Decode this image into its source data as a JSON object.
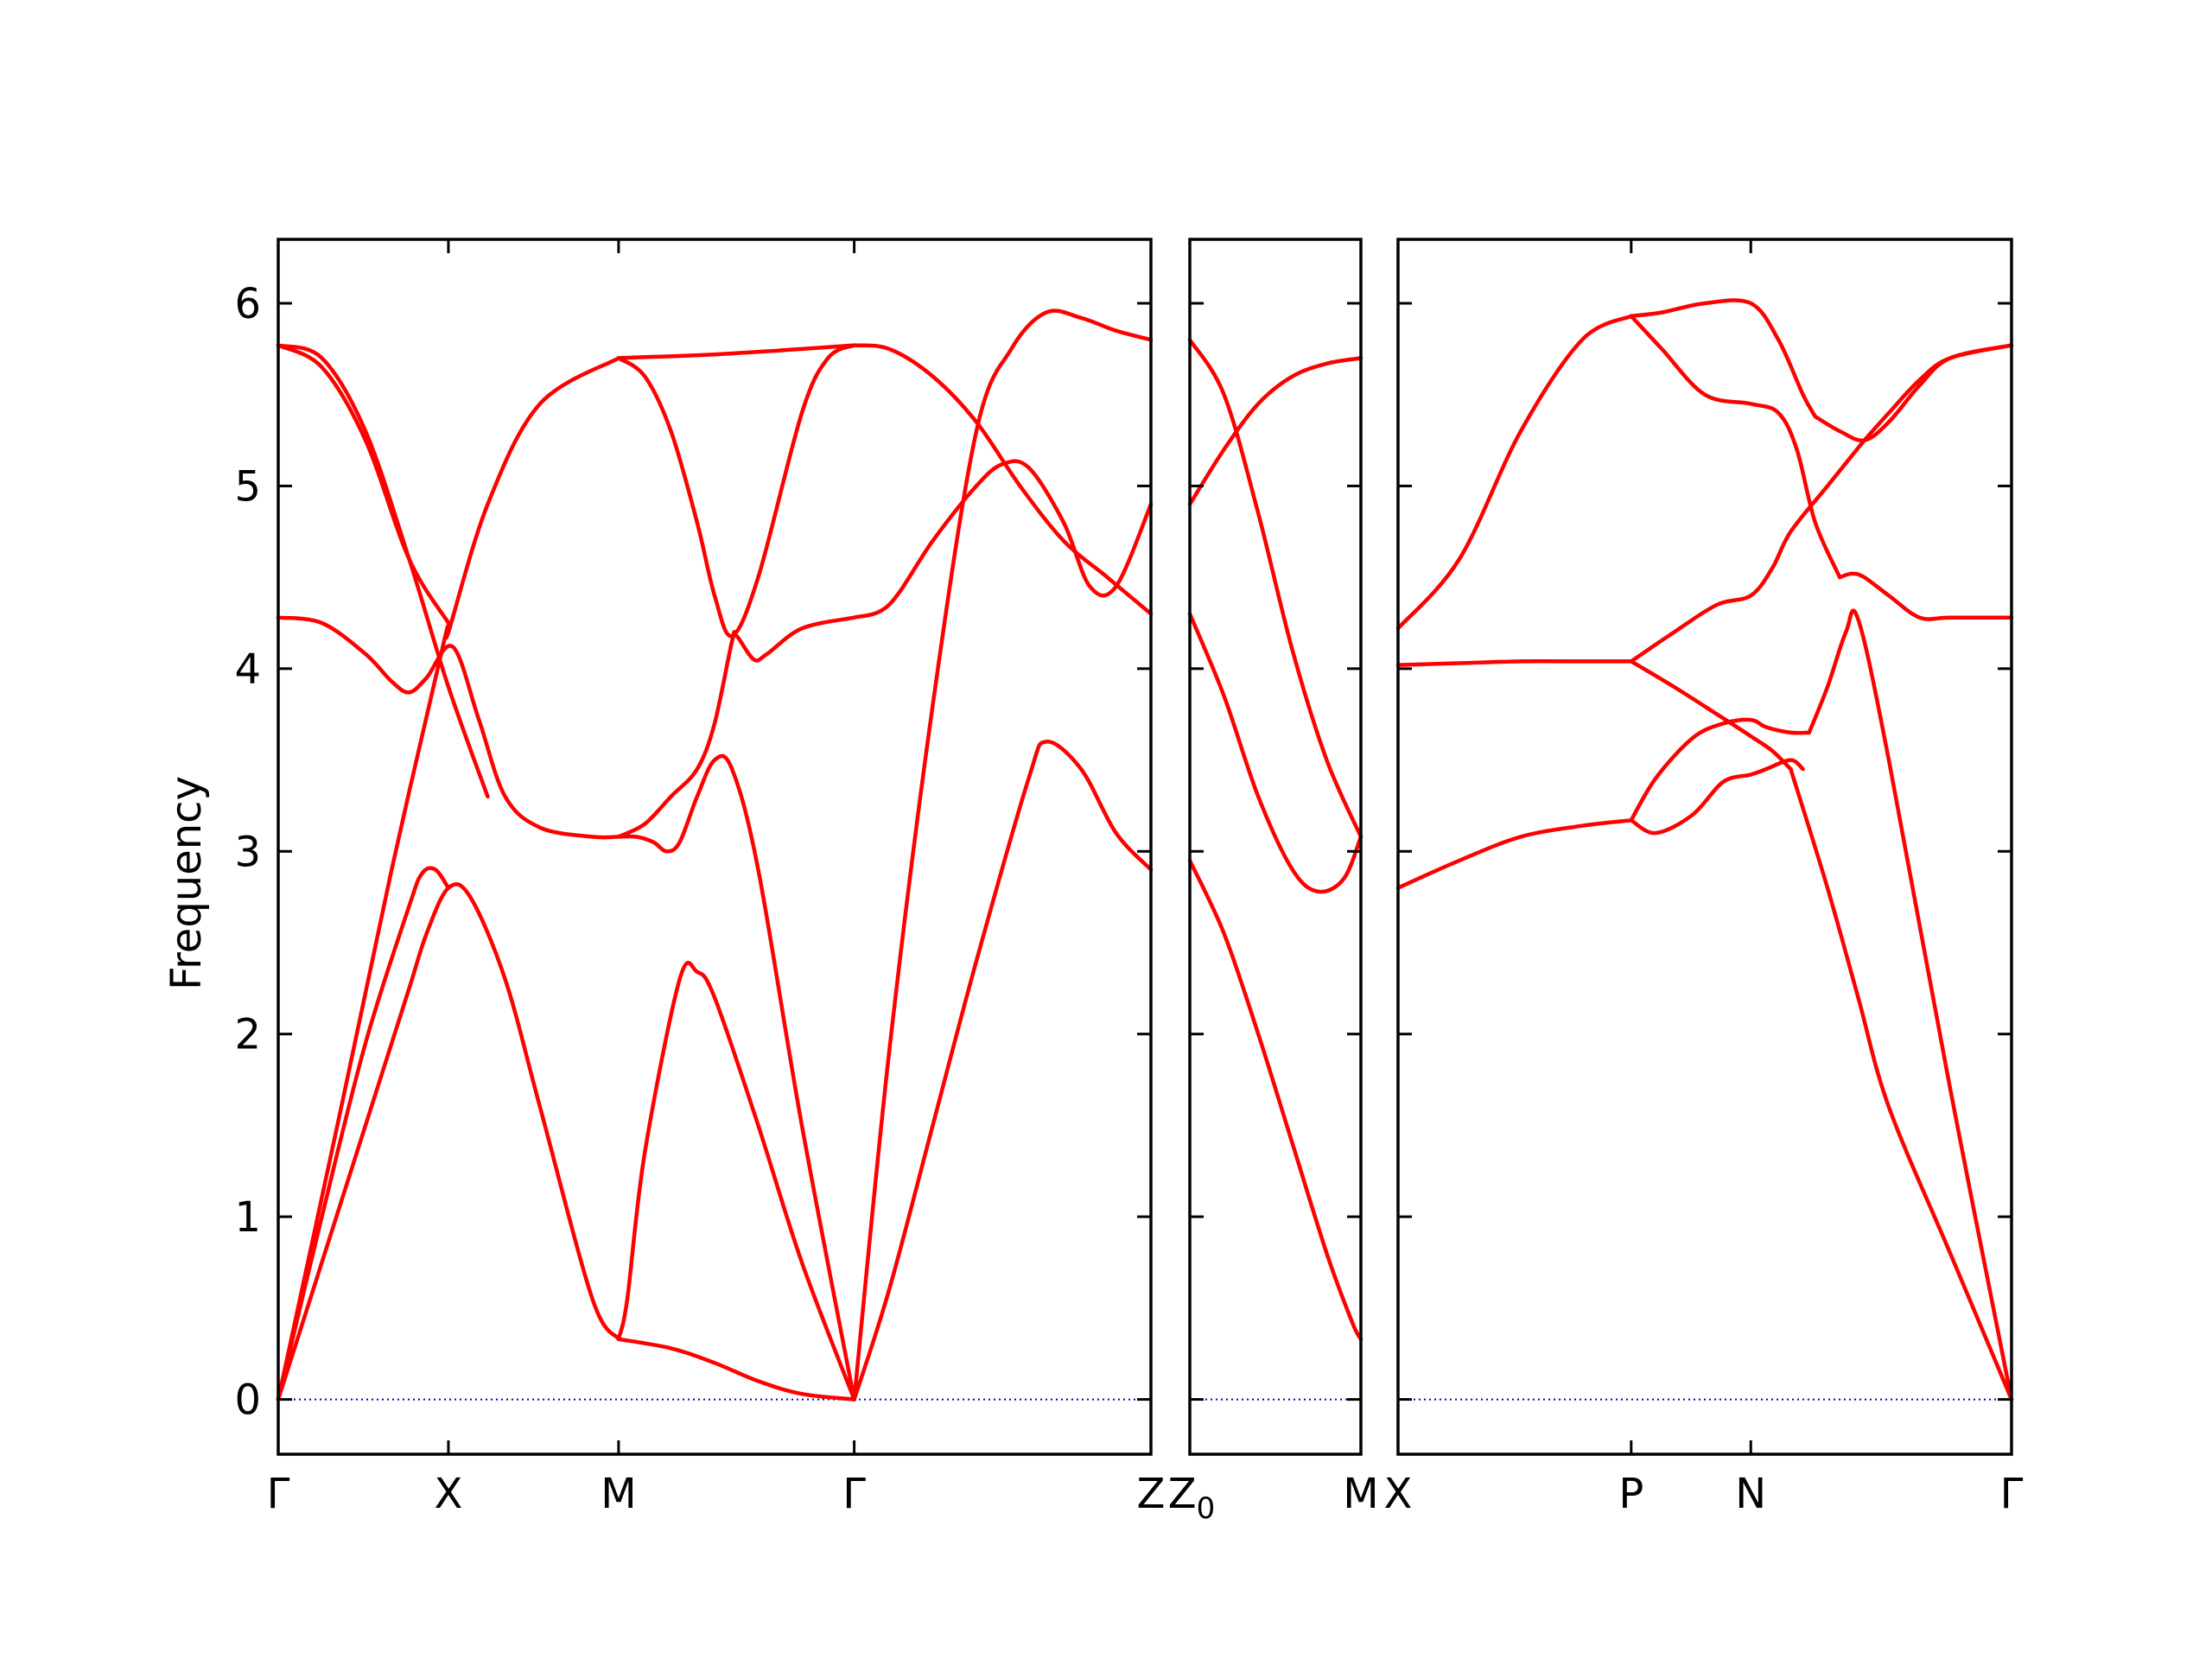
{
  "chart_data": {
    "type": "line",
    "title": "",
    "xlabel": "",
    "ylabel": "Frequency",
    "ylim": [
      -0.3,
      6.35
    ],
    "yticks": [
      0,
      1,
      2,
      3,
      4,
      5,
      6
    ],
    "grid": false,
    "legend": "none",
    "band_color": "#ff0000",
    "zero_line_color": "#0000cc",
    "panels": [
      {
        "x_range": [
          0,
          1
        ],
        "ticks": [
          {
            "x": 0,
            "label": "Γ"
          },
          {
            "x": 0.195,
            "label": "X"
          },
          {
            "x": 0.39,
            "label": "M"
          },
          {
            "x": 0.66,
            "label": "Γ"
          },
          {
            "x": 1,
            "label": "Z"
          }
        ],
        "series": [
          {
            "x": [
              0,
              0.05,
              0.1,
              0.15,
              0.17,
              0.195,
              0.22,
              0.26,
              0.3,
              0.36,
              0.39
            ],
            "values": [
              0,
              0.75,
              1.5,
              2.25,
              2.55,
              2.8,
              2.75,
              2.3,
              1.6,
              0.55,
              0.33
            ]
          },
          {
            "x": [
              0,
              0.05,
              0.1,
              0.15,
              0.165,
              0.18,
              0.195
            ],
            "values": [
              0,
              1.0,
              1.95,
              2.7,
              2.88,
              2.9,
              2.8
            ]
          },
          {
            "x": [
              0,
              0.07,
              0.13,
              0.19,
              0.195,
              0.24,
              0.3,
              0.39
            ],
            "values": [
              0,
              1.55,
              2.9,
              4.15,
              4.2,
              4.9,
              5.45,
              5.7
            ]
          },
          {
            "x": [
              0,
              0.05,
              0.1,
              0.13,
              0.15,
              0.17,
              0.2,
              0.23,
              0.26,
              0.3,
              0.36,
              0.39
            ],
            "values": [
              4.28,
              4.25,
              4.08,
              3.93,
              3.87,
              3.95,
              4.12,
              3.72,
              3.3,
              3.13,
              3.08,
              3.08
            ]
          },
          {
            "x": [
              0,
              0.05,
              0.1,
              0.15,
              0.195,
              0.24
            ],
            "values": [
              5.77,
              5.7,
              5.3,
              4.6,
              3.9,
              3.3
            ]
          },
          {
            "x": [
              0,
              0.05,
              0.1,
              0.15,
              0.195
            ],
            "values": [
              5.77,
              5.65,
              5.25,
              4.6,
              4.25
            ]
          },
          {
            "x": [
              0.39,
              0.45,
              0.5,
              0.55,
              0.6,
              0.66
            ],
            "values": [
              0.33,
              0.28,
              0.2,
              0.1,
              0.03,
              0
            ]
          },
          {
            "x": [
              0.39,
              0.4,
              0.42,
              0.46,
              0.48,
              0.5,
              0.55,
              0.6,
              0.66
            ],
            "values": [
              0.33,
              0.55,
              1.35,
              2.3,
              2.34,
              2.2,
              1.5,
              0.75,
              0
            ]
          },
          {
            "x": [
              0.39,
              0.41,
              0.43,
              0.445,
              0.46,
              0.48,
              0.5,
              0.52,
              0.55,
              0.6,
              0.66
            ],
            "values": [
              3.08,
              3.08,
              3.05,
              3.0,
              3.05,
              3.3,
              3.5,
              3.45,
              2.9,
              1.5,
              0
            ]
          },
          {
            "x": [
              0.39,
              0.42,
              0.45,
              0.48,
              0.5,
              0.52,
              0.525,
              0.545,
              0.56,
              0.6,
              0.66
            ],
            "values": [
              3.08,
              3.15,
              3.3,
              3.45,
              3.7,
              4.15,
              4.18,
              4.05,
              4.08,
              4.22,
              4.28
            ]
          },
          {
            "x": [
              0.39,
              0.42,
              0.45,
              0.48,
              0.5,
              0.52,
              0.55,
              0.6,
              0.63,
              0.66
            ],
            "values": [
              5.7,
              5.6,
              5.3,
              4.8,
              4.4,
              4.18,
              4.5,
              5.4,
              5.7,
              5.77
            ]
          },
          {
            "x": [
              0.39,
              0.5,
              0.6,
              0.66
            ],
            "values": [
              5.7,
              5.72,
              5.75,
              5.77
            ]
          },
          {
            "x": [
              0.66,
              0.7,
              0.75,
              0.8,
              0.86,
              0.88,
              0.92,
              0.96,
              1.0
            ],
            "values": [
              0,
              0.6,
              1.5,
              2.4,
              3.4,
              3.6,
              3.45,
              3.1,
              2.9
            ]
          },
          {
            "x": [
              0.66,
              0.7,
              0.75,
              0.8,
              0.84,
              0.88,
              0.92,
              0.96,
              1.0
            ],
            "values": [
              0,
              1.9,
              3.8,
              5.3,
              5.75,
              5.95,
              5.92,
              5.85,
              5.8
            ]
          },
          {
            "x": [
              0.66,
              0.7,
              0.75,
              0.8,
              0.83,
              0.86,
              0.9,
              0.93,
              0.96,
              1.0
            ],
            "values": [
              4.28,
              4.35,
              4.7,
              5.0,
              5.12,
              5.1,
              4.8,
              4.45,
              4.45,
              4.9
            ]
          },
          {
            "x": [
              0.66,
              0.7,
              0.75,
              0.8,
              0.85,
              0.9,
              0.95,
              1.0
            ],
            "values": [
              5.77,
              5.75,
              5.6,
              5.35,
              5.0,
              4.7,
              4.5,
              4.3
            ]
          }
        ]
      },
      {
        "x_range": [
          0,
          1
        ],
        "ticks": [
          {
            "x": 0,
            "label": "Z"
          },
          {
            "x": 1,
            "label": "M"
          }
        ],
        "series": [
          {
            "x": [
              0,
              0.2,
              0.4,
              0.6,
              0.8,
              0.95,
              1.0
            ],
            "values": [
              2.95,
              2.55,
              2.0,
              1.4,
              0.8,
              0.42,
              0.33
            ]
          },
          {
            "x": [
              0,
              0.2,
              0.4,
              0.6,
              0.75,
              0.9,
              1.0
            ],
            "values": [
              4.3,
              3.85,
              3.3,
              2.9,
              2.78,
              2.85,
              3.08
            ]
          },
          {
            "x": [
              0,
              0.2,
              0.4,
              0.6,
              0.8,
              1.0
            ],
            "values": [
              5.8,
              5.5,
              4.85,
              4.1,
              3.5,
              3.08
            ]
          },
          {
            "x": [
              0,
              0.2,
              0.4,
              0.6,
              0.8,
              1.0
            ],
            "values": [
              4.9,
              5.2,
              5.45,
              5.6,
              5.67,
              5.7
            ]
          }
        ]
      },
      {
        "x_range": [
          0,
          1
        ],
        "ticks": [
          {
            "x": 0,
            "label": "X"
          },
          {
            "x": 0.38,
            "label": "P"
          },
          {
            "x": 0.575,
            "label": "N"
          },
          {
            "x": 1,
            "label": "Γ"
          }
        ],
        "series": [
          {
            "x": [
              0,
              0.1,
              0.2,
              0.3,
              0.38
            ],
            "values": [
              2.8,
              2.95,
              3.08,
              3.14,
              3.17
            ]
          },
          {
            "x": [
              0,
              0.1,
              0.2,
              0.3,
              0.38
            ],
            "values": [
              4.02,
              4.03,
              4.04,
              4.04,
              4.04
            ]
          },
          {
            "x": [
              0,
              0.1,
              0.2,
              0.3,
              0.38
            ],
            "values": [
              4.22,
              4.6,
              5.3,
              5.8,
              5.93
            ]
          },
          {
            "x": [
              0.38,
              0.42,
              0.48,
              0.53,
              0.575,
              0.6,
              0.64,
              0.66
            ],
            "values": [
              3.17,
              3.1,
              3.2,
              3.38,
              3.42,
              3.45,
              3.5,
              3.45
            ]
          },
          {
            "x": [
              0.38,
              0.42,
              0.48,
              0.53,
              0.575,
              0.6,
              0.64,
              0.67
            ],
            "values": [
              3.17,
              3.4,
              3.62,
              3.7,
              3.72,
              3.68,
              3.65,
              3.65
            ]
          },
          {
            "x": [
              0.38,
              0.45,
              0.52,
              0.575,
              0.61,
              0.64
            ],
            "values": [
              4.04,
              3.9,
              3.75,
              3.63,
              3.55,
              3.45
            ]
          },
          {
            "x": [
              0.38,
              0.45,
              0.52,
              0.575,
              0.61,
              0.64,
              0.7,
              0.76
            ],
            "values": [
              4.04,
              4.2,
              4.35,
              4.4,
              4.55,
              4.75,
              5.0,
              5.25
            ]
          },
          {
            "x": [
              0.38,
              0.43,
              0.5,
              0.575,
              0.62,
              0.66,
              0.68
            ],
            "values": [
              5.93,
              5.95,
              6.0,
              6.0,
              5.8,
              5.5,
              5.38
            ]
          },
          {
            "x": [
              0.38,
              0.43,
              0.5,
              0.575,
              0.62,
              0.65,
              0.68,
              0.72
            ],
            "values": [
              5.93,
              5.75,
              5.5,
              5.45,
              5.4,
              5.2,
              4.8,
              4.5
            ]
          },
          {
            "x": [
              0.64,
              0.7,
              0.75,
              0.8,
              0.9,
              1.0
            ],
            "values": [
              3.45,
              2.8,
              2.2,
              1.6,
              0.8,
              0
            ]
          },
          {
            "x": [
              0.67,
              0.7,
              0.73,
              0.75,
              0.8,
              0.9,
              1.0
            ],
            "values": [
              3.65,
              3.9,
              4.2,
              4.27,
              3.5,
              1.7,
              0
            ]
          },
          {
            "x": [
              0.72,
              0.74,
              0.76,
              0.8,
              0.85,
              0.9,
              1.0
            ],
            "values": [
              4.5,
              4.52,
              4.5,
              4.4,
              4.28,
              4.28,
              4.28
            ]
          },
          {
            "x": [
              0.68,
              0.72,
              0.76,
              0.8,
              0.85,
              0.9,
              1.0
            ],
            "values": [
              5.38,
              5.3,
              5.25,
              5.35,
              5.55,
              5.7,
              5.77
            ]
          },
          {
            "x": [
              0.76,
              0.8,
              0.85,
              0.9,
              1.0
            ],
            "values": [
              5.25,
              5.4,
              5.58,
              5.7,
              5.77
            ]
          }
        ]
      }
    ]
  }
}
